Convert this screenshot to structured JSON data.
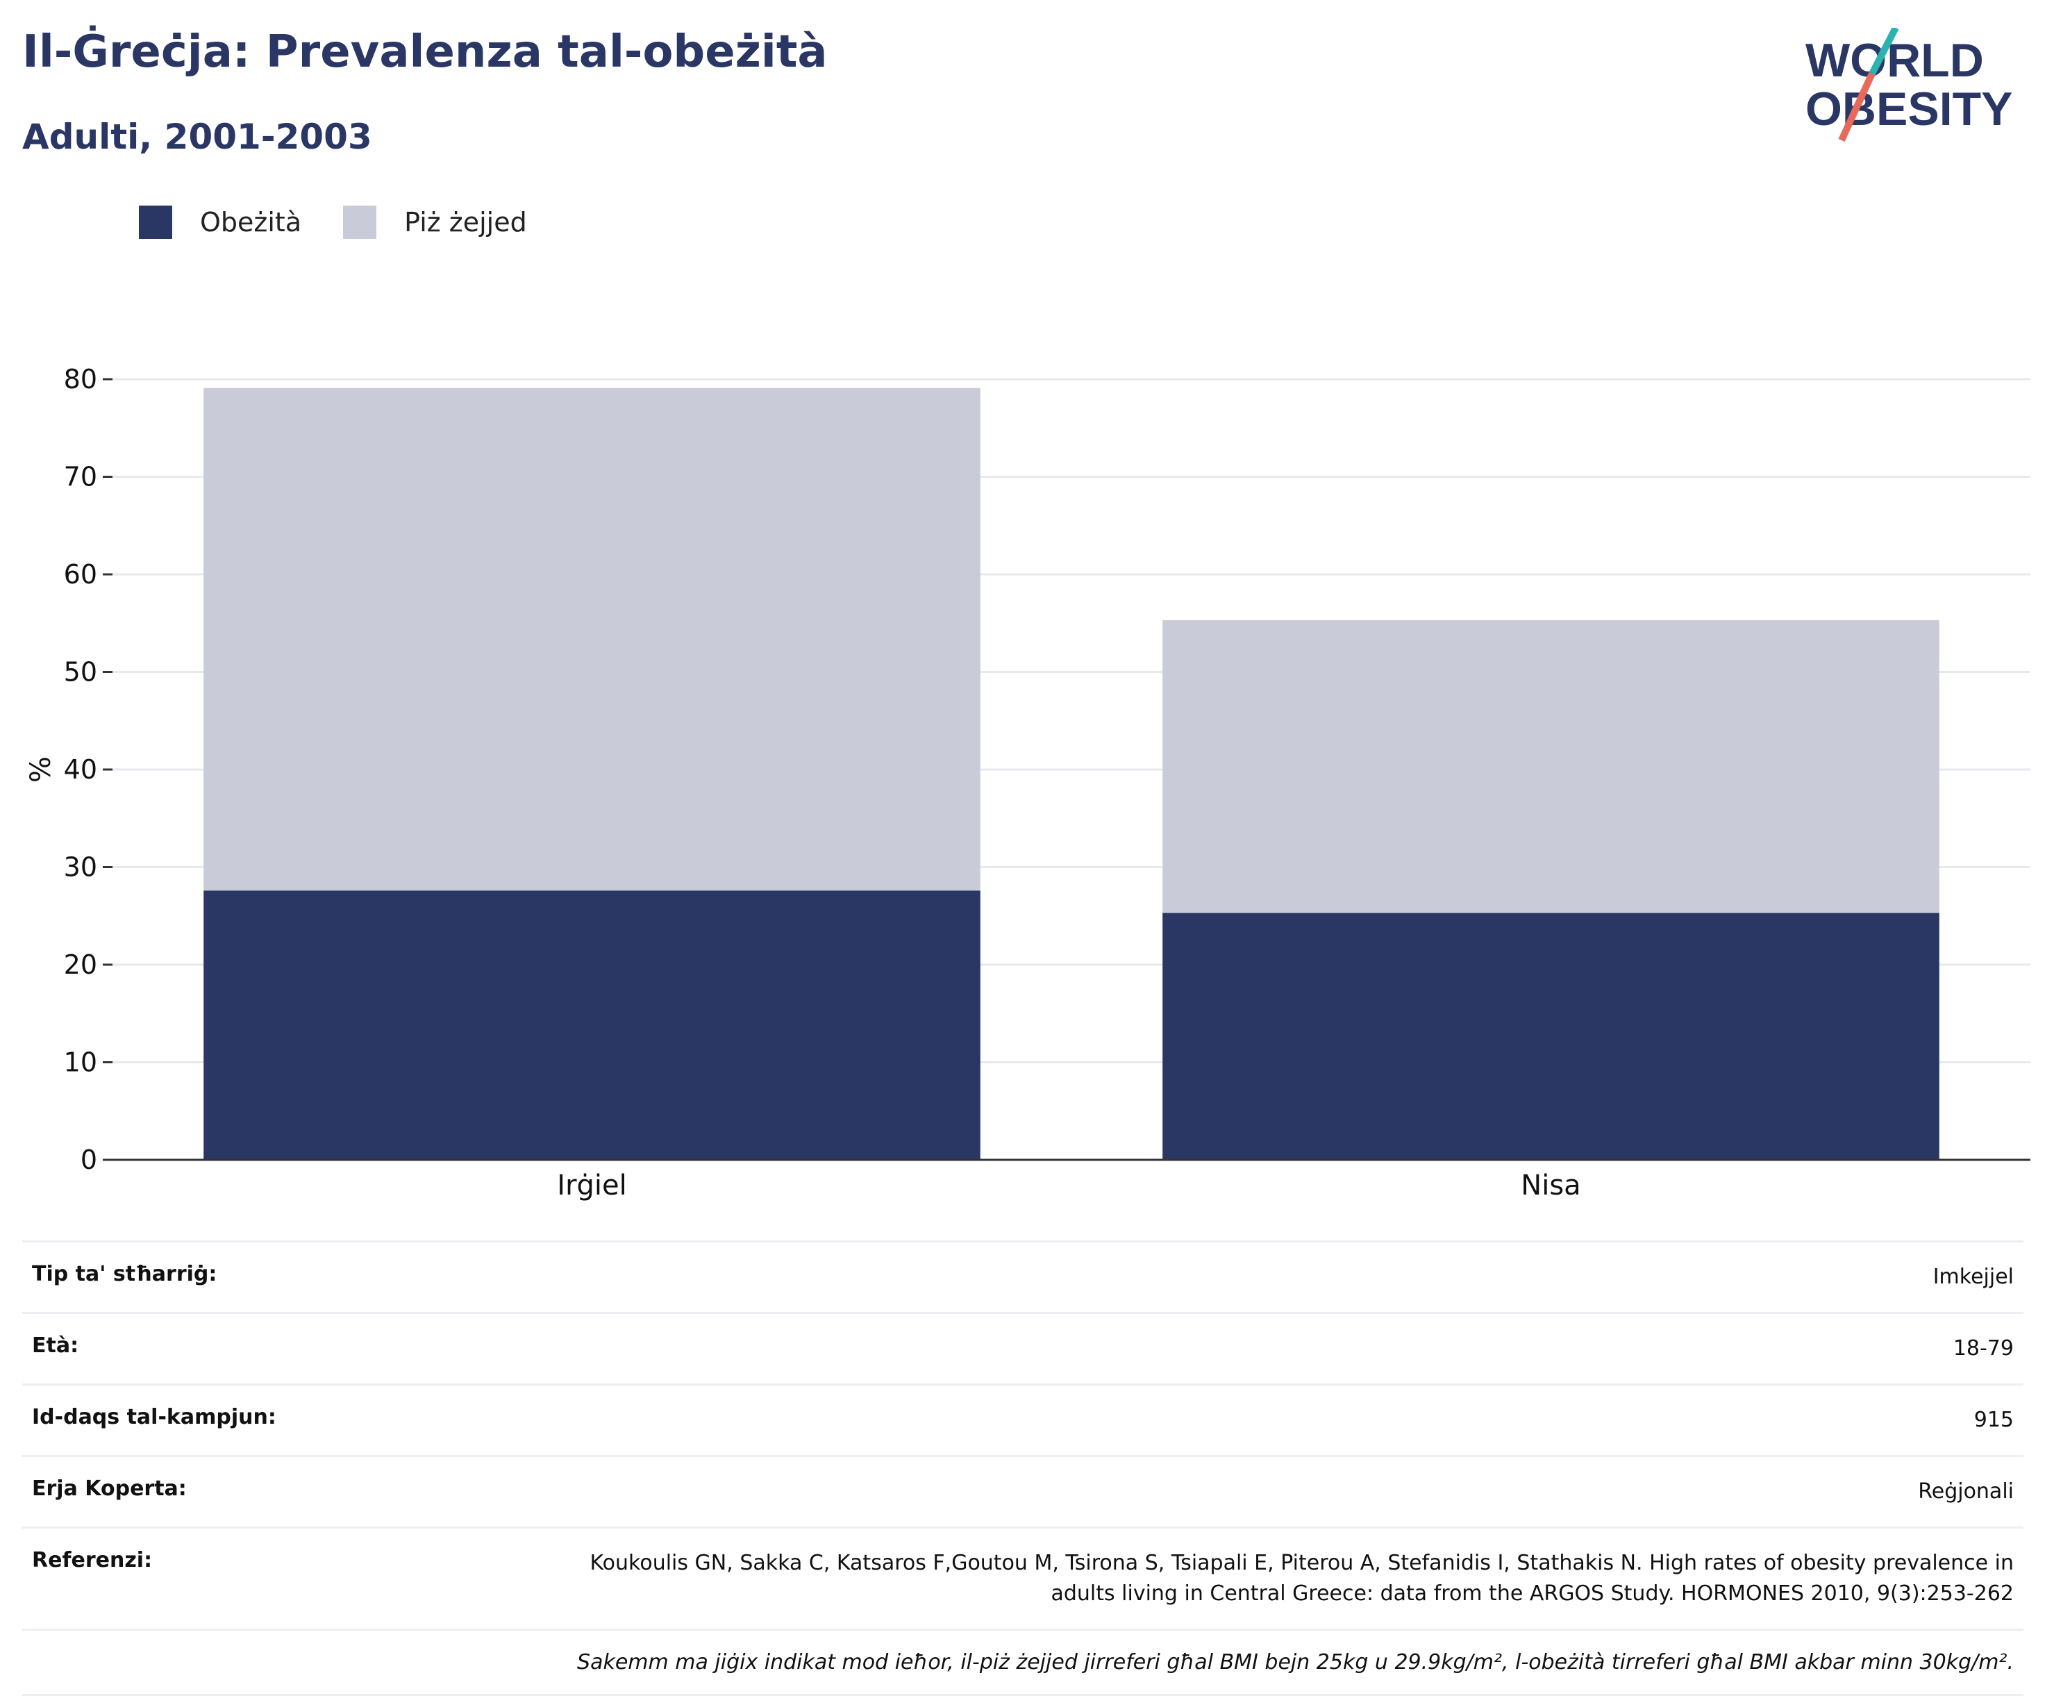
{
  "header": {
    "title": "Il-Ġreċja: Prevalenza tal-obeżità",
    "subtitle": "Adulti, 2001-2003"
  },
  "logo": {
    "line1": "WORLD",
    "line2": "OBESITY"
  },
  "colors": {
    "obesity": "#2a3765",
    "overweight": "#c9ccd8",
    "title": "#2a3765",
    "logo_teal": "#2bb3b1",
    "logo_red": "#e8685a"
  },
  "chart_data": {
    "type": "bar",
    "stacked": true,
    "categories": [
      "Irġiel",
      "Nisa"
    ],
    "series": [
      {
        "name": "Obeżità",
        "values": [
          27.6,
          25.3
        ]
      },
      {
        "name": "Piż żejjed",
        "values": [
          51.5,
          30.0
        ]
      }
    ],
    "ylabel": "%",
    "ylim": [
      0,
      80
    ],
    "yticks": [
      0,
      10,
      20,
      30,
      40,
      50,
      60,
      70,
      80
    ],
    "grid": true,
    "legend_position": "top-left"
  },
  "info": {
    "rows": [
      {
        "label": "Tip ta' stħarriġ:",
        "value": "Imkejjel"
      },
      {
        "label": "Età:",
        "value": "18-79"
      },
      {
        "label": "Id-daqs tal-kampjun:",
        "value": "915"
      },
      {
        "label": "Erja Koperta:",
        "value": "Reġjonali"
      },
      {
        "label": "Referenzi:",
        "value": "Koukoulis GN, Sakka C, Katsaros F,Goutou M, Tsirona S, Tsiapali E, Piterou A, Stefanidis I, Stathakis N. High rates of obesity prevalence in adults living in Central Greece: data from the ARGOS Study. HORMONES 2010, 9(3):253-262"
      }
    ],
    "note": "Sakemm ma jiġix indikat mod ieħor, il-piż żejjed jirreferi għal BMI bejn 25kg u 29.9kg/m², l-obeżità tirreferi għal BMI akbar minn 30kg/m²."
  }
}
